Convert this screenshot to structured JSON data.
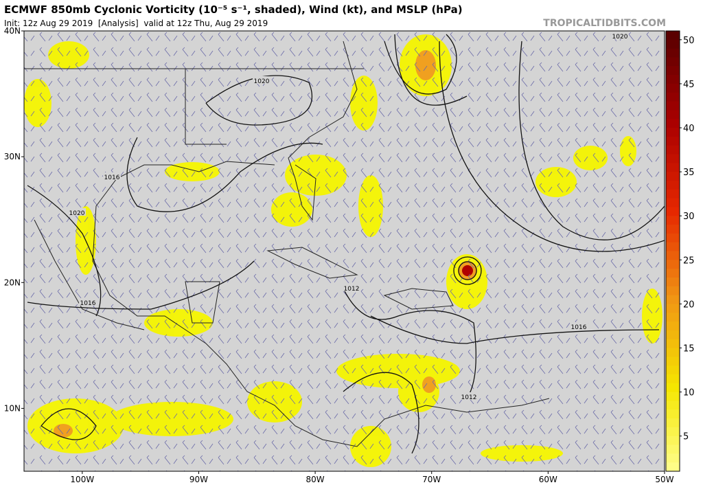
{
  "header": {
    "title": "ECMWF 850mb Cyclonic Vorticity (10⁻⁵ s⁻¹, shaded), Wind (kt), and MSLP (hPa)",
    "subtitle": "Init: 12z Aug 29 2019  [Analysis]  valid at 12z Thu, Aug 29 2019",
    "watermark": "TROPICALTIDBITS.COM"
  },
  "map": {
    "lat_ticks": [
      {
        "value": 40,
        "label": "40N"
      },
      {
        "value": 30,
        "label": "30N"
      },
      {
        "value": 20,
        "label": "20N"
      },
      {
        "value": 10,
        "label": "10N"
      }
    ],
    "lon_ticks": [
      {
        "value": -100,
        "label": "100W"
      },
      {
        "value": -90,
        "label": "90W"
      },
      {
        "value": -80,
        "label": "80W"
      },
      {
        "value": -70,
        "label": "70W"
      },
      {
        "value": -60,
        "label": "60W"
      },
      {
        "value": -50,
        "label": "50W"
      }
    ],
    "lat_lim": [
      5,
      40
    ],
    "lon_lim": [
      -105,
      -50
    ],
    "isobar_labels": [
      "1020",
      "1016",
      "1020",
      "1016",
      "1012",
      "1012",
      "1016",
      "1020"
    ]
  },
  "colorbar": {
    "lim": [
      1,
      51
    ],
    "ticks": [
      5,
      10,
      15,
      20,
      25,
      30,
      35,
      40,
      45,
      50
    ]
  }
}
